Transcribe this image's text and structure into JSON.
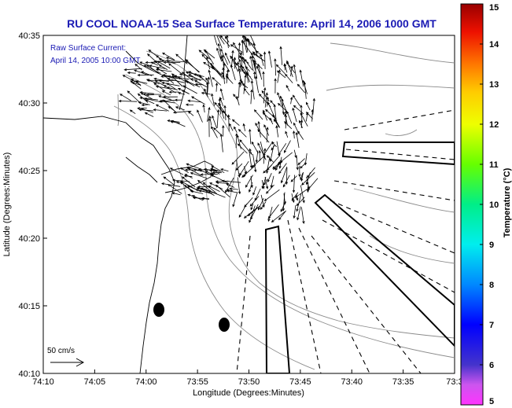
{
  "chart_data": {
    "type": "vector field map",
    "title": "RU COOL  NOAA-15  Sea Surface Temperature:  April 14, 2006 1000 GMT",
    "inset_line1": "Raw Surface Current:",
    "inset_line2": "April 14, 2005 10:00 GMT",
    "xlabel": "Longitude (Degrees:Minutes)",
    "ylabel": "Latitude (Degrees:Minutes)",
    "x_ticks": [
      "74:10",
      "74:05",
      "74:00",
      "73:55",
      "73:50",
      "73:45",
      "73:40",
      "73:35",
      "73:3"
    ],
    "y_ticks": [
      "40:35",
      "40:30",
      "40:25",
      "40:20",
      "40:15",
      "40:10"
    ],
    "xlim_deg_west": [
      74.1667,
      73.5
    ],
    "ylim_deg_north": [
      40.1667,
      40.5833
    ],
    "scale_label": "50 cm/s",
    "colorbar": {
      "label": "Temperature (°C)",
      "min": 5,
      "max": 15,
      "ticks": [
        "5",
        "6",
        "7",
        "8",
        "9",
        "10",
        "11",
        "12",
        "13",
        "14",
        "15"
      ]
    },
    "grid": false
  }
}
